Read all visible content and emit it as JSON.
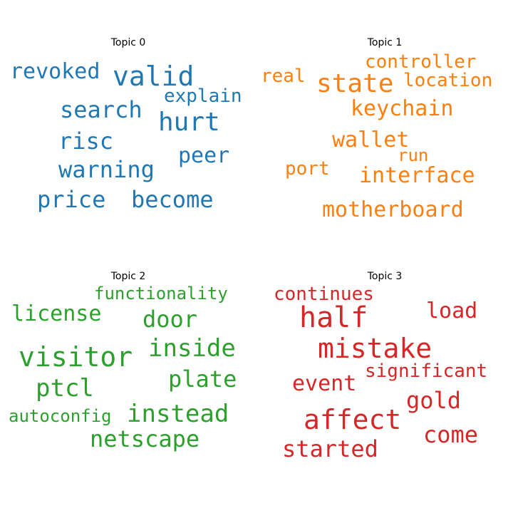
{
  "topics": [
    {
      "title": "Topic 0",
      "color": "#1f77b4",
      "words": [
        "revoked",
        "valid",
        "explain",
        "search",
        "hurt",
        "risc",
        "peer",
        "warning",
        "price",
        "become"
      ]
    },
    {
      "title": "Topic 1",
      "color": "#ff7f0e",
      "words": [
        "controller",
        "real",
        "state",
        "location",
        "keychain",
        "wallet",
        "run",
        "port",
        "interface",
        "motherboard"
      ]
    },
    {
      "title": "Topic 2",
      "color": "#2ca02c",
      "words": [
        "functionality",
        "license",
        "door",
        "visitor",
        "inside",
        "ptcl",
        "plate",
        "autoconfig",
        "instead",
        "netscape"
      ]
    },
    {
      "title": "Topic 3",
      "color": "#d62728",
      "words": [
        "continues",
        "half",
        "load",
        "mistake",
        "significant",
        "event",
        "gold",
        "affect",
        "come",
        "started"
      ]
    }
  ]
}
